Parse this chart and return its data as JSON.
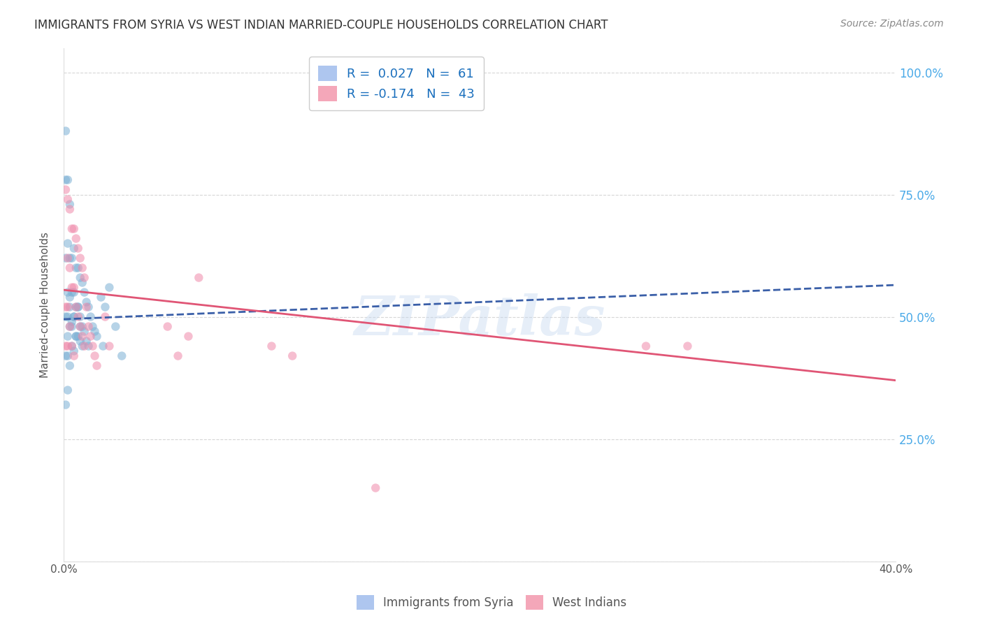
{
  "title": "IMMIGRANTS FROM SYRIA VS WEST INDIAN MARRIED-COUPLE HOUSEHOLDS CORRELATION CHART",
  "source": "Source: ZipAtlas.com",
  "ylabel": "Married-couple Households",
  "xlim": [
    0.0,
    0.4
  ],
  "ylim": [
    0.0,
    1.05
  ],
  "background_color": "#ffffff",
  "grid_color": "#cccccc",
  "title_color": "#333333",
  "source_color": "#888888",
  "right_axis_color": "#4baae8",
  "scatter_alpha": 0.55,
  "scatter_size": 80,
  "blue_color": "#7bafd4",
  "pink_color": "#f08aaa",
  "blue_line_color": "#3a5fa8",
  "pink_line_color": "#e05575",
  "blue_patch_color": "#aec6ef",
  "pink_patch_color": "#f4a7b9",
  "blue_x": [
    0.001,
    0.001,
    0.001,
    0.001,
    0.001,
    0.001,
    0.002,
    0.002,
    0.002,
    0.002,
    0.002,
    0.002,
    0.002,
    0.003,
    0.003,
    0.003,
    0.003,
    0.003,
    0.004,
    0.004,
    0.004,
    0.004,
    0.005,
    0.005,
    0.005,
    0.005,
    0.006,
    0.006,
    0.006,
    0.007,
    0.007,
    0.007,
    0.008,
    0.008,
    0.008,
    0.009,
    0.009,
    0.01,
    0.01,
    0.011,
    0.011,
    0.012,
    0.012,
    0.013,
    0.014,
    0.015,
    0.016,
    0.018,
    0.019,
    0.02,
    0.022,
    0.025,
    0.028,
    0.003,
    0.004,
    0.005,
    0.006,
    0.007,
    0.008,
    0.009
  ],
  "blue_y": [
    0.88,
    0.78,
    0.62,
    0.5,
    0.42,
    0.32,
    0.78,
    0.65,
    0.55,
    0.5,
    0.46,
    0.42,
    0.35,
    0.73,
    0.62,
    0.52,
    0.48,
    0.4,
    0.62,
    0.55,
    0.49,
    0.44,
    0.64,
    0.55,
    0.5,
    0.43,
    0.6,
    0.52,
    0.46,
    0.6,
    0.52,
    0.46,
    0.58,
    0.5,
    0.45,
    0.57,
    0.48,
    0.55,
    0.47,
    0.53,
    0.45,
    0.52,
    0.44,
    0.5,
    0.48,
    0.47,
    0.46,
    0.54,
    0.44,
    0.52,
    0.56,
    0.48,
    0.42,
    0.54,
    0.48,
    0.5,
    0.46,
    0.52,
    0.48,
    0.44
  ],
  "pink_x": [
    0.001,
    0.001,
    0.001,
    0.002,
    0.002,
    0.002,
    0.002,
    0.003,
    0.003,
    0.003,
    0.004,
    0.004,
    0.004,
    0.005,
    0.005,
    0.005,
    0.006,
    0.006,
    0.007,
    0.007,
    0.008,
    0.008,
    0.009,
    0.009,
    0.01,
    0.01,
    0.011,
    0.012,
    0.013,
    0.014,
    0.015,
    0.016,
    0.02,
    0.022,
    0.05,
    0.055,
    0.06,
    0.065,
    0.1,
    0.11,
    0.28,
    0.3,
    0.15
  ],
  "pink_y": [
    0.76,
    0.52,
    0.44,
    0.74,
    0.62,
    0.52,
    0.44,
    0.72,
    0.6,
    0.48,
    0.68,
    0.56,
    0.44,
    0.68,
    0.56,
    0.42,
    0.66,
    0.52,
    0.64,
    0.5,
    0.62,
    0.48,
    0.6,
    0.46,
    0.58,
    0.44,
    0.52,
    0.48,
    0.46,
    0.44,
    0.42,
    0.4,
    0.5,
    0.44,
    0.48,
    0.42,
    0.46,
    0.58,
    0.44,
    0.42,
    0.44,
    0.44,
    0.15
  ],
  "blue_trend_x": [
    0.0,
    0.4
  ],
  "blue_trend_y": [
    0.495,
    0.565
  ],
  "pink_trend_x": [
    0.0,
    0.4
  ],
  "pink_trend_y": [
    0.555,
    0.37
  ]
}
